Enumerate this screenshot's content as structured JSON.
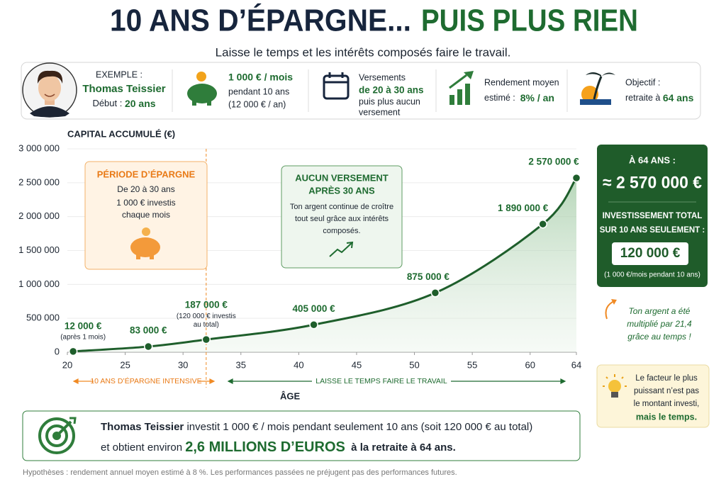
{
  "header": {
    "title_part1": "10 ANS D’ÉPARGNE...",
    "title_part2": "PUIS PLUS RIEN",
    "subtitle": "Laisse le temps et les intérêts composés faire le travail."
  },
  "info_bar": {
    "example_label": "EXEMPLE :",
    "name": "Thomas Teissier",
    "start_label": "Début : ",
    "start_value": "20 ans",
    "monthly_amount": "1 000 € / mois",
    "monthly_duration": "pendant 10 ans",
    "monthly_total": "(12 000 € / an)",
    "payments_line1": "Versements",
    "payments_range": "de 20 à 30 ans",
    "payments_line3": "puis plus aucun",
    "payments_line4": "versement",
    "return_label": "Rendement moyen",
    "return_estimated": "estimé :  ",
    "return_value": "8% / an",
    "goal_label": "Objectif :",
    "goal_text": "retraite à ",
    "goal_value": "64 ans"
  },
  "chart_data": {
    "type": "line",
    "ylabel": "CAPITAL ACCUMULÉ (€)",
    "xlabel": "ÂGE",
    "x": [
      20.5,
      27,
      32,
      41.3,
      51.8,
      61.1,
      64
    ],
    "values": [
      12000,
      83000,
      187000,
      405000,
      875000,
      1890000,
      2570000
    ],
    "value_labels": [
      "12 000 €",
      "83 000 €",
      "187 000 €",
      "405 000 €",
      "875 000 €",
      "1 890 000 €",
      "2 570 000 €"
    ],
    "point_notes": [
      [
        "(après 1 mois)"
      ],
      null,
      [
        "(120 000 € investis",
        "au total)"
      ],
      null,
      null,
      null,
      null
    ],
    "color": "#1e5e2b",
    "xlim": [
      20,
      64
    ],
    "xticks": [
      20,
      25,
      30,
      35,
      40,
      45,
      50,
      55,
      60,
      64
    ],
    "ylim": [
      0,
      3000000
    ],
    "yticks": [
      0,
      {
        "value": 500000,
        "label": "500 000"
      },
      {
        "value": 1000000,
        "label": "1 000 000"
      },
      {
        "value": 1500000,
        "label": "1 500 000"
      },
      {
        "value": 2000000,
        "label": "2 000 000"
      },
      {
        "value": 2500000,
        "label": "2 500 000"
      },
      {
        "value": 3000000,
        "label": "3 000 000"
      }
    ],
    "grid": true
  },
  "annotations": {
    "saving_box": {
      "title": "PÉRIODE D’ÉPARGNE",
      "lines": [
        "De 20 à 30 ans",
        "1 000 € investis",
        "chaque mois"
      ]
    },
    "no_payment_box": {
      "title_lines": [
        "AUCUN VERSEMENT",
        "APRÈS 30 ANS"
      ],
      "lines": [
        "Ton argent continue de croître",
        "tout seul grâce aux intérêts",
        "composés."
      ]
    },
    "saving_bracket": "10 ANS D’ÉPARGNE INTENSIVE",
    "time_bracket": "LAISSE LE TEMPS FAIRE LE TRAVAIL"
  },
  "summary_panel": {
    "age_label": "À 64 ANS :",
    "final_amount": "≈ 2 570 000 €",
    "invest_line1": "INVESTISSEMENT TOTAL",
    "invest_line2": "SUR 10 ANS SEULEMENT :",
    "invest_amount": "120 000 €",
    "invest_note": "(1 000 €/mois pendant 10 ans)"
  },
  "note": [
    "Ton argent a été",
    "multiplié par 21,4",
    "grâce au temps !"
  ],
  "tip": [
    "Le facteur le plus",
    "puissant n’est pas",
    "le montant investi,",
    "mais le temps."
  ],
  "bottom": {
    "name": "Thomas Teissier",
    "line1_rest": " investit 1 000 € / mois pendant seulement 10 ans (soit 120 000 € au total)",
    "line2_start": "et obtient environ ",
    "line2_highlight": "2,6 MILLIONS D’EUROS",
    "line2_end": "  à la retraite à 64 ans."
  },
  "footnote": "Hypothèses : rendement annuel moyen estimé à 8 %. Les performances passées ne préjugent pas des performances futures."
}
